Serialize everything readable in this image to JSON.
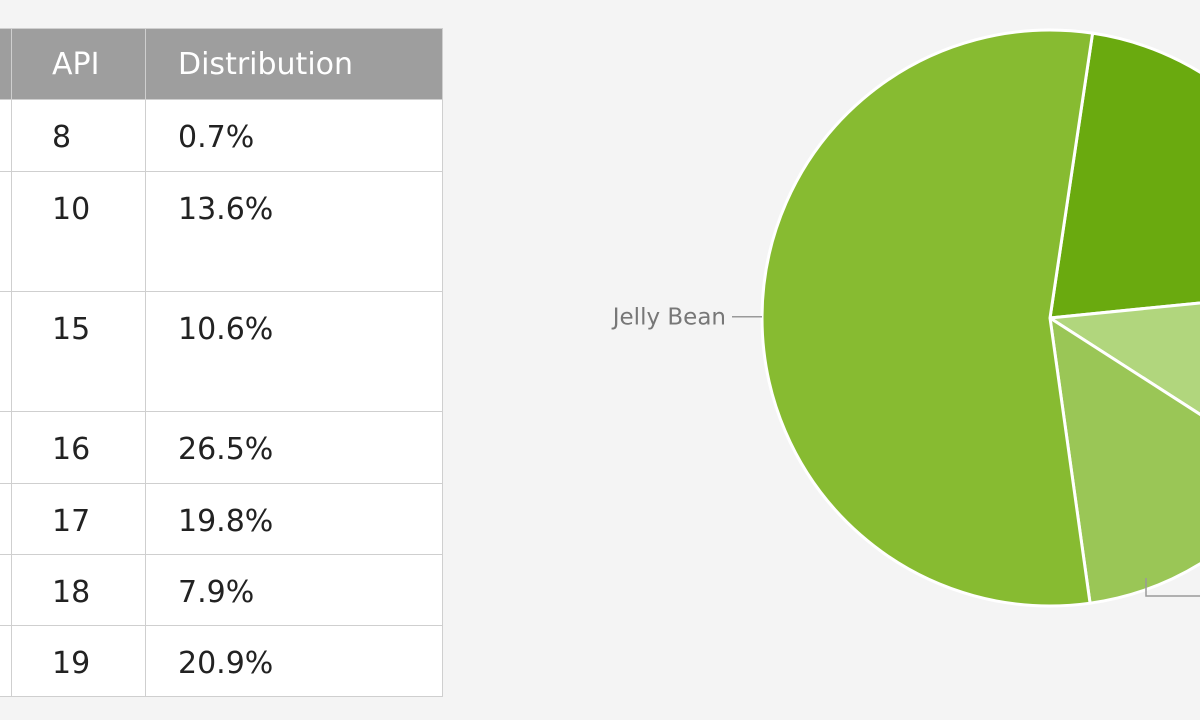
{
  "table": {
    "headers": [
      "",
      "API",
      "Distribution"
    ],
    "rows": [
      {
        "version": "",
        "api": "8",
        "distribution": "0.7%"
      },
      {
        "version": "",
        "api": "10",
        "distribution": "13.6%"
      },
      {
        "version": "",
        "api": "15",
        "distribution": "10.6%"
      },
      {
        "version": "",
        "api": "16",
        "distribution": "26.5%"
      },
      {
        "version": "",
        "api": "17",
        "distribution": "19.8%"
      },
      {
        "version": "",
        "api": "18",
        "distribution": "7.9%"
      },
      {
        "version": "",
        "api": "19",
        "distribution": "20.9%"
      }
    ]
  },
  "chart_data": [
    {
      "type": "table",
      "columns": [
        "",
        "API",
        "Distribution"
      ],
      "rows": [
        [
          "",
          "8",
          "0.7%"
        ],
        [
          "",
          "10",
          "13.6%"
        ],
        [
          "",
          "15",
          "10.6%"
        ],
        [
          "",
          "16",
          "26.5%"
        ],
        [
          "",
          "17",
          "19.8%"
        ],
        [
          "",
          "18",
          "7.9%"
        ],
        [
          "",
          "19",
          "20.9%"
        ]
      ]
    },
    {
      "type": "pie",
      "title": "",
      "slices": [
        {
          "label": "",
          "value": 20.9,
          "color": "#6aaa0f"
        },
        {
          "label": "",
          "value": 10.6,
          "color": "#b1d67d"
        },
        {
          "label": "",
          "value": 13.6,
          "color": "#9ac656"
        },
        {
          "label": "Jelly Bean",
          "value": 54.2,
          "color": "#87bb31"
        }
      ]
    }
  ]
}
